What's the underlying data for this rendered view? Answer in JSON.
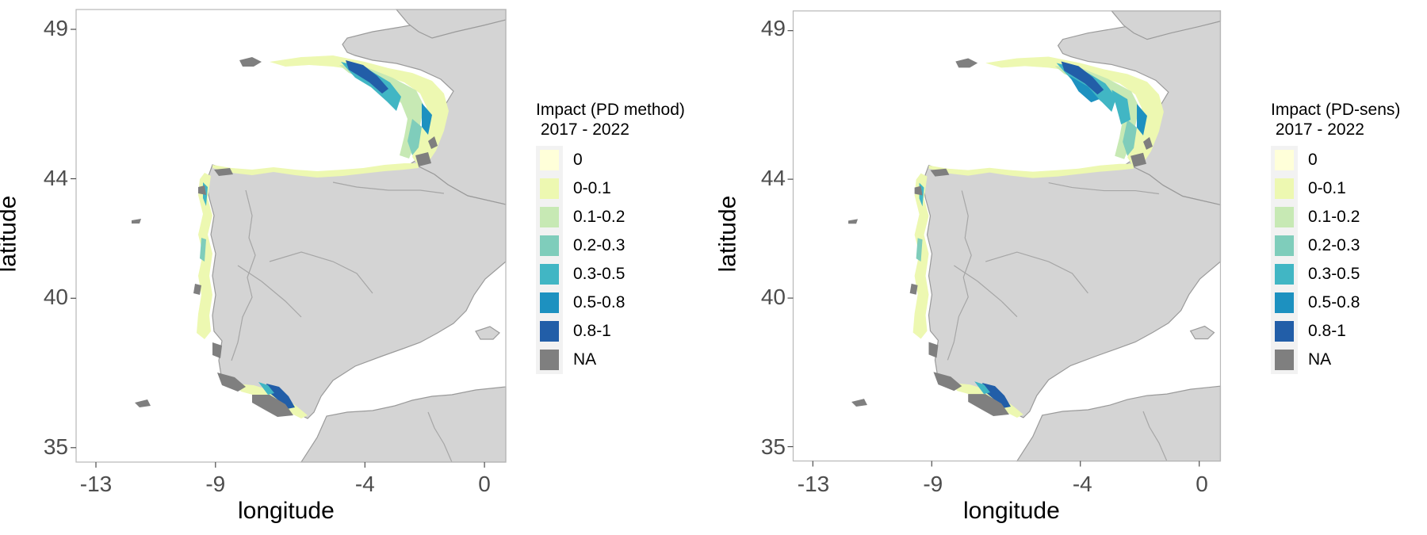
{
  "colors": {
    "land": "#d4d4d4",
    "land_border": "#9a9a9a",
    "na": "#7f7f7f",
    "frame": "#b8b8b8"
  },
  "legend_classes": [
    {
      "label": "0",
      "color": "#ffffd9"
    },
    {
      "label": "0-0.1",
      "color": "#edf8b1"
    },
    {
      "label": "0.1-0.2",
      "color": "#c7e9b4"
    },
    {
      "label": "0.2-0.3",
      "color": "#7fcdbb"
    },
    {
      "label": "0.3-0.5",
      "color": "#41b6c4"
    },
    {
      "label": "0.5-0.8",
      "color": "#1d91c0"
    },
    {
      "label": "0.8-1",
      "color": "#225ea8"
    },
    {
      "label": "NA",
      "color": "#7f7f7f"
    }
  ],
  "panels": [
    {
      "x_title": "longitude",
      "y_title": "latitude",
      "legend_title": "Impact (PD method)\n 2017 - 2022",
      "x_ticks": [
        {
          "value": -13,
          "label": "-13"
        },
        {
          "value": -9,
          "label": "-9"
        },
        {
          "value": -4,
          "label": "-4"
        },
        {
          "value": 0,
          "label": "0"
        }
      ],
      "y_ticks": [
        {
          "value": 49,
          "label": "49"
        },
        {
          "value": 44,
          "label": "44"
        },
        {
          "value": 40,
          "label": "40"
        },
        {
          "value": 35,
          "label": "35"
        }
      ],
      "variant": "pd"
    },
    {
      "x_title": "longitude",
      "y_title": "latitude",
      "legend_title": "Impact (PD-sens)\n 2017 - 2022",
      "x_ticks": [
        {
          "value": -13,
          "label": "-13"
        },
        {
          "value": -9,
          "label": "-9"
        },
        {
          "value": -4,
          "label": "-4"
        },
        {
          "value": 0,
          "label": "0"
        }
      ],
      "y_ticks": [
        {
          "value": 49,
          "label": "49"
        },
        {
          "value": 44,
          "label": "44"
        },
        {
          "value": 40,
          "label": "40"
        },
        {
          "value": 35,
          "label": "35"
        }
      ],
      "variant": "sens"
    }
  ]
}
